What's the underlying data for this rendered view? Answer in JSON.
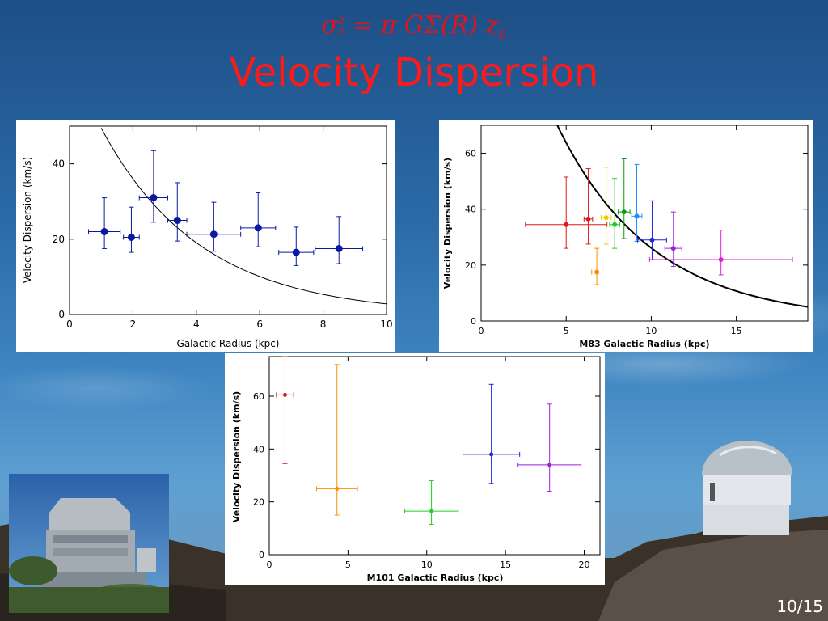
{
  "slide": {
    "formula_sigma": "σ",
    "formula_sub": "z",
    "formula_sup": "2",
    "formula_rhs": " = π GΣ(R) z",
    "formula_rhs_sub": "0",
    "title": "Velocity Dispersion",
    "page": "10/15"
  },
  "colors": {
    "title": "#ff1a1a",
    "formula": "#e0141c",
    "point": "#0a1aa0"
  },
  "chart_data": [
    {
      "type": "scatter",
      "xlabel": "Galactic Radius (kpc)",
      "ylabel": "Velocity Dispersion (km/s)",
      "xlim": [
        0,
        10
      ],
      "ylim": [
        0,
        50
      ],
      "xticks": [
        0,
        2,
        4,
        6,
        8,
        10
      ],
      "yticks": [
        0,
        20,
        40
      ],
      "points": [
        {
          "x": 1.1,
          "y": 22,
          "xerr": 0.5,
          "yerr_lo": 4.5,
          "yerr_hi": 9,
          "color": "#0a1aa0"
        },
        {
          "x": 1.95,
          "y": 20.5,
          "xerr": 0.25,
          "yerr_lo": 4,
          "yerr_hi": 8,
          "color": "#0a1aa0"
        },
        {
          "x": 2.65,
          "y": 31,
          "xerr": 0.45,
          "yerr_lo": 6.5,
          "yerr_hi": 12.5,
          "color": "#0a1aa0"
        },
        {
          "x": 3.4,
          "y": 25,
          "xerr": 0.3,
          "yerr_lo": 5.5,
          "yerr_hi": 10,
          "color": "#0a1aa0"
        },
        {
          "x": 4.55,
          "y": 21.3,
          "xerr": 0.85,
          "yerr_lo": 4.5,
          "yerr_hi": 8.5,
          "color": "#0a1aa0"
        },
        {
          "x": 5.95,
          "y": 23,
          "xerr": 0.55,
          "yerr_lo": 5,
          "yerr_hi": 9.3,
          "color": "#0a1aa0"
        },
        {
          "x": 7.15,
          "y": 16.5,
          "xerr": 0.55,
          "yerr_lo": 3.5,
          "yerr_hi": 6.7,
          "color": "#0a1aa0"
        },
        {
          "x": 8.5,
          "y": 17.5,
          "xerr": 0.75,
          "yerr_lo": 4,
          "yerr_hi": 8.5,
          "color": "#0a1aa0"
        }
      ],
      "curve": {
        "A": 68,
        "k": 0.318
      }
    },
    {
      "type": "scatter",
      "xlabel": "M83 Galactic Radius (kpc)",
      "ylabel": "Velocity Dispersion (km/s)",
      "xlim": [
        0,
        19.2
      ],
      "ylim": [
        0,
        70
      ],
      "xticks": [
        0,
        5,
        10,
        15
      ],
      "yticks": [
        0,
        20,
        40,
        60
      ],
      "points": [
        {
          "x": 5.0,
          "y": 34.5,
          "xerr": 2.4,
          "yerr_lo": 8.5,
          "yerr_hi": 17,
          "color": "#e01818"
        },
        {
          "x": 6.3,
          "y": 36.5,
          "xerr": 0.25,
          "yerr_lo": 9,
          "yerr_hi": 18,
          "color": "#e01818"
        },
        {
          "x": 6.8,
          "y": 17.5,
          "xerr": 0.3,
          "yerr_lo": 4.5,
          "yerr_hi": 8.5,
          "color": "#ff8c00"
        },
        {
          "x": 7.35,
          "y": 37,
          "xerr": 0.3,
          "yerr_lo": 9.5,
          "yerr_hi": 18,
          "color": "#e8d000"
        },
        {
          "x": 7.85,
          "y": 34.5,
          "xerr": 0.3,
          "yerr_lo": 8.5,
          "yerr_hi": 16.5,
          "color": "#22cc22"
        },
        {
          "x": 8.4,
          "y": 39,
          "xerr": 0.35,
          "yerr_lo": 9.5,
          "yerr_hi": 19,
          "color": "#119911"
        },
        {
          "x": 9.15,
          "y": 37.5,
          "xerr": 0.3,
          "yerr_lo": 9,
          "yerr_hi": 18.5,
          "color": "#1e90ff"
        },
        {
          "x": 10.05,
          "y": 29,
          "xerr": 0.85,
          "yerr_lo": 7,
          "yerr_hi": 14,
          "color": "#1a2ad8"
        },
        {
          "x": 11.3,
          "y": 26,
          "xerr": 0.5,
          "yerr_lo": 6.5,
          "yerr_hi": 13,
          "color": "#9922dd"
        },
        {
          "x": 14.1,
          "y": 22,
          "xerr": 4.2,
          "yerr_lo": 5.5,
          "yerr_hi": 10.5,
          "color": "#dd22dd"
        }
      ],
      "curve": {
        "A": 155.6,
        "k": 0.1784
      }
    },
    {
      "type": "scatter",
      "xlabel": "M101 Galactic Radius (kpc)",
      "ylabel": "Velocity Dispersion (km/s)",
      "xlim": [
        0,
        21
      ],
      "ylim": [
        0,
        75
      ],
      "xticks": [
        0,
        5,
        10,
        15,
        20
      ],
      "yticks": [
        0,
        20,
        40,
        60
      ],
      "points": [
        {
          "x": 1.0,
          "y": 60.5,
          "xerr": 0.55,
          "yerr_lo": 26,
          "yerr_hi": 14.5,
          "color": "#e01818"
        },
        {
          "x": 4.3,
          "y": 25,
          "xerr": 1.3,
          "yerr_lo": 10,
          "yerr_hi": 47,
          "color": "#ff8c00"
        },
        {
          "x": 10.3,
          "y": 16.5,
          "xerr": 1.7,
          "yerr_lo": 5,
          "yerr_hi": 11.5,
          "color": "#22cc22"
        },
        {
          "x": 14.1,
          "y": 38,
          "xerr": 1.8,
          "yerr_lo": 11,
          "yerr_hi": 26.5,
          "color": "#1a2ad8"
        },
        {
          "x": 17.8,
          "y": 34,
          "xerr": 2.0,
          "yerr_lo": 10,
          "yerr_hi": 23,
          "color": "#9922dd"
        }
      ]
    }
  ]
}
